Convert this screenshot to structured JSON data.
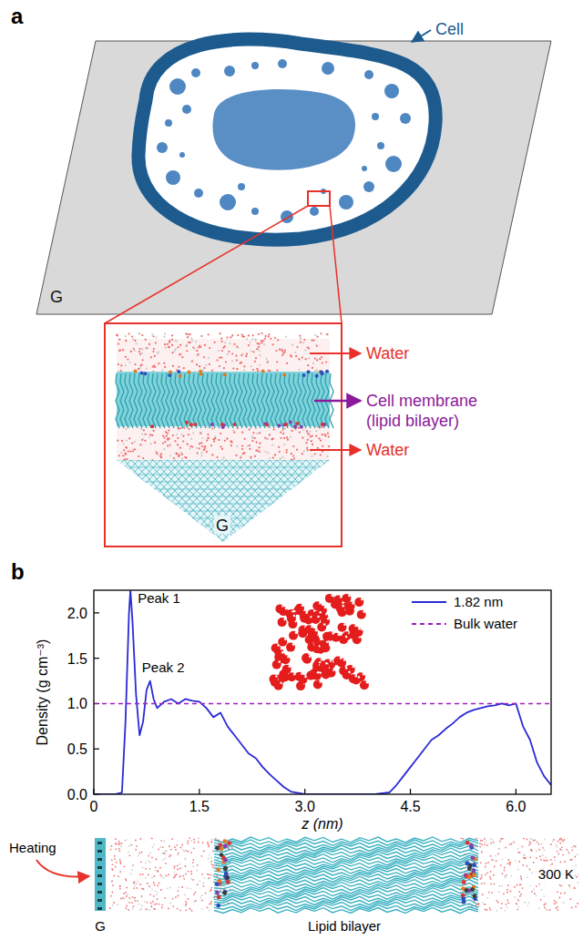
{
  "panel_a": {
    "letter": "a",
    "plane_label": "G",
    "cell_label": "Cell",
    "inset": {
      "water_top": "Water",
      "membrane": "Cell membrane",
      "membrane_note": "(lipid bilayer)",
      "water_bottom": "Water",
      "plane_label": "G"
    }
  },
  "panel_b": {
    "letter": "b",
    "snapshot": {
      "heating": "Heating",
      "plane_label": "G",
      "bilayer_label": "Lipid bilayer",
      "temperature": "300 K"
    }
  },
  "chart_data": {
    "type": "line",
    "x_label": "z (nm)",
    "y_label": "Density (g cm⁻³)",
    "series": [
      {
        "name": "1.82 nm",
        "color": "#2a2ad6",
        "line_style": "solid",
        "x": [
          0,
          0.3,
          0.4,
          0.45,
          0.5,
          0.52,
          0.55,
          0.6,
          0.65,
          0.7,
          0.75,
          0.8,
          0.85,
          0.9,
          1.0,
          1.1,
          1.2,
          1.3,
          1.4,
          1.5,
          1.6,
          1.7,
          1.8,
          1.9,
          2.0,
          2.1,
          2.2,
          2.3,
          2.4,
          2.5,
          2.6,
          2.7,
          2.8,
          3.0,
          3.5,
          4.0,
          4.2,
          4.3,
          4.4,
          4.5,
          4.6,
          4.7,
          4.8,
          4.9,
          5.0,
          5.1,
          5.2,
          5.3,
          5.4,
          5.5,
          5.6,
          5.7,
          5.8,
          5.9,
          6.0,
          6.1,
          6.2,
          6.3,
          6.4,
          6.5
        ],
        "values": [
          0,
          0,
          0.02,
          0.8,
          2.0,
          2.25,
          1.9,
          1.1,
          0.65,
          0.8,
          1.15,
          1.25,
          1.05,
          0.95,
          1.02,
          1.05,
          1.0,
          1.05,
          1.03,
          1.02,
          0.95,
          0.85,
          0.9,
          0.75,
          0.65,
          0.55,
          0.45,
          0.4,
          0.3,
          0.22,
          0.15,
          0.08,
          0.03,
          0,
          0,
          0,
          0.02,
          0.1,
          0.2,
          0.3,
          0.4,
          0.5,
          0.6,
          0.65,
          0.72,
          0.78,
          0.85,
          0.9,
          0.93,
          0.95,
          0.97,
          0.98,
          1.0,
          0.98,
          1.0,
          0.75,
          0.6,
          0.35,
          0.2,
          0.1
        ]
      },
      {
        "name": "Bulk water",
        "color": "#a01fc0",
        "line_style": "dashed",
        "x": [
          0,
          6.5
        ],
        "values": [
          1.0,
          1.0
        ]
      }
    ],
    "xlim": [
      0,
      6.5
    ],
    "xticks": [
      0,
      1.5,
      {
        "value": 3,
        "label": "3.0"
      },
      4.5,
      {
        "value": 6,
        "label": "6.0"
      }
    ],
    "ylim": [
      0,
      2.25
    ],
    "yticks": [
      {
        "value": 0,
        "label": "0.0"
      },
      0.5,
      {
        "value": 1,
        "label": "1.0"
      },
      1.5,
      {
        "value": 2,
        "label": "2.0"
      }
    ],
    "legend": "top-right",
    "grid": false,
    "annotations": [
      {
        "text": "Peak 1",
        "x": 0.52,
        "y": 2.25
      },
      {
        "text": "Peak 2",
        "x": 0.8,
        "y": 1.25
      }
    ]
  }
}
